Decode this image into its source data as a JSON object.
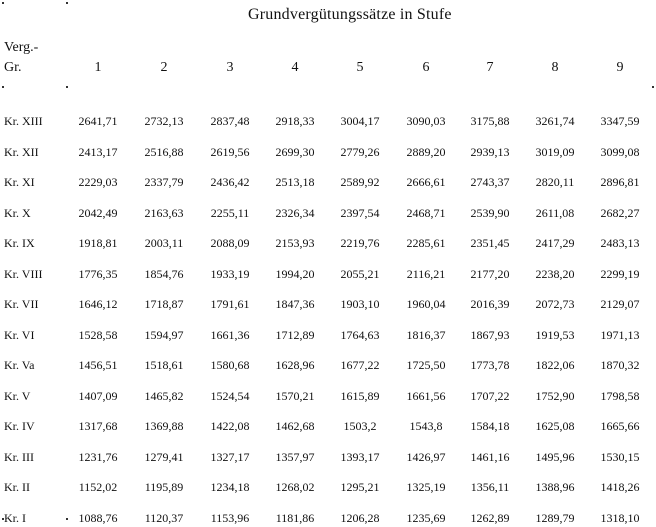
{
  "title": "Grundvergütungssätze in Stufe",
  "header_group_line1": "Verg.-",
  "header_group_line2": "Gr.",
  "columns": [
    "1",
    "2",
    "3",
    "4",
    "5",
    "6",
    "7",
    "8",
    "9"
  ],
  "rows": [
    {
      "label": "Kr. XIII",
      "values": [
        "2641,71",
        "2732,13",
        "2837,48",
        "2918,33",
        "3004,17",
        "3090,03",
        "3175,88",
        "3261,74",
        "3347,59"
      ]
    },
    {
      "label": "Kr. XII",
      "values": [
        "2413,17",
        "2516,88",
        "2619,56",
        "2699,30",
        "2779,26",
        "2889,20",
        "2939,13",
        "3019,09",
        "3099,08"
      ]
    },
    {
      "label": "Kr. XI",
      "values": [
        "2229,03",
        "2337,79",
        "2436,42",
        "2513,18",
        "2589,92",
        "2666,61",
        "2743,37",
        "2820,11",
        "2896,81"
      ]
    },
    {
      "label": "Kr. X",
      "values": [
        "2042,49",
        "2163,63",
        "2255,11",
        "2326,34",
        "2397,54",
        "2468,71",
        "2539,90",
        "2611,08",
        "2682,27"
      ]
    },
    {
      "label": "Kr. IX",
      "values": [
        "1918,81",
        "2003,11",
        "2088,09",
        "2153,93",
        "2219,76",
        "2285,61",
        "2351,45",
        "2417,29",
        "2483,13"
      ]
    },
    {
      "label": "Kr. VIII",
      "values": [
        "1776,35",
        "1854,76",
        "1933,19",
        "1994,20",
        "2055,21",
        "2116,21",
        "2177,20",
        "2238,20",
        "2299,19"
      ]
    },
    {
      "label": "Kr. VII",
      "values": [
        "1646,12",
        "1718,87",
        "1791,61",
        "1847,36",
        "1903,10",
        "1960,04",
        "2016,39",
        "2072,73",
        "2129,07"
      ]
    },
    {
      "label": "Kr. VI",
      "values": [
        "1528,58",
        "1594,97",
        "1661,36",
        "1712,89",
        "1764,63",
        "1816,37",
        "1867,93",
        "1919,53",
        "1971,13"
      ]
    },
    {
      "label": "Kr. Va",
      "values": [
        "1456,51",
        "1518,61",
        "1580,68",
        "1628,96",
        "1677,22",
        "1725,50",
        "1773,78",
        "1822,06",
        "1870,32"
      ]
    },
    {
      "label": "Kr. V",
      "values": [
        "1407,09",
        "1465,82",
        "1524,54",
        "1570,21",
        "1615,89",
        "1661,56",
        "1707,22",
        "1752,90",
        "1798,58"
      ]
    },
    {
      "label": "Kr. IV",
      "values": [
        "1317,68",
        "1369,88",
        "1422,08",
        "1462,68",
        "1503,2",
        "1543,8",
        "1584,18",
        "1625,08",
        "1665,66"
      ]
    },
    {
      "label": "Kr. III",
      "values": [
        "1231,76",
        "1279,41",
        "1327,17",
        "1357,97",
        "1393,17",
        "1426,97",
        "1461,16",
        "1495,96",
        "1530,15"
      ]
    },
    {
      "label": "Kr. II",
      "values": [
        "1152,02",
        "1195,89",
        "1234,18",
        "1268,02",
        "1295,21",
        "1325,19",
        "1356,11",
        "1388,96",
        "1418,26"
      ]
    },
    {
      "label": "Kr. I",
      "values": [
        "1088,76",
        "1120,37",
        "1153,96",
        "1181,86",
        "1206,28",
        "1235,69",
        "1262,89",
        "1289,79",
        "1318,10"
      ]
    }
  ]
}
